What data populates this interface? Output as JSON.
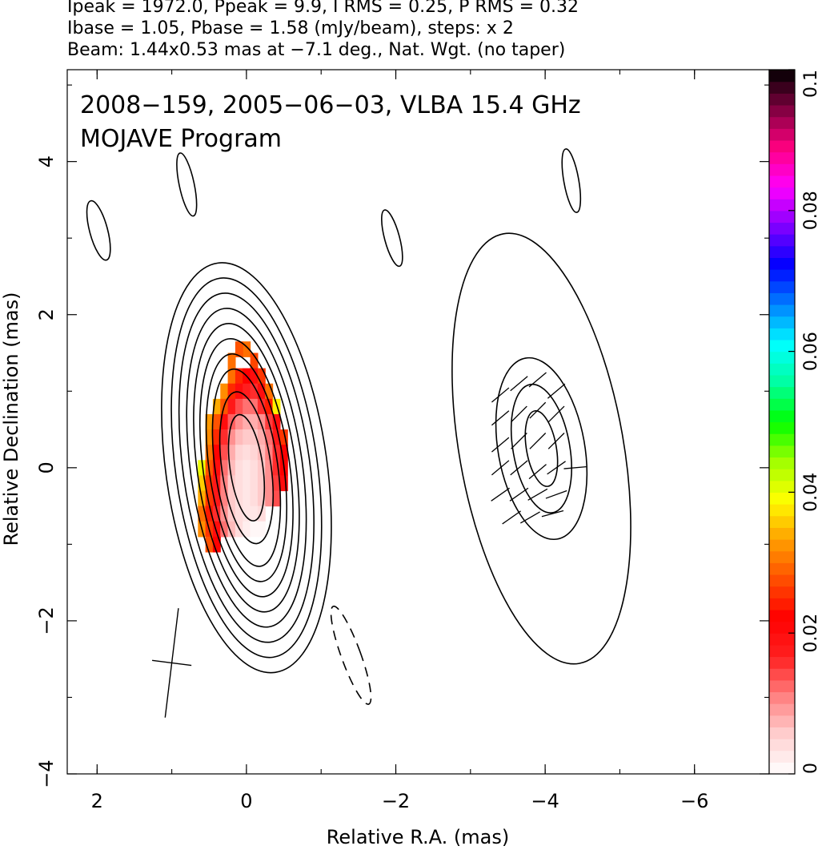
{
  "header": {
    "line1": "Ipeak = 1972.0, Ppeak = 9.9, I RMS = 0.25, P RMS = 0.32",
    "line2": "Ibase = 1.05, Pbase = 1.58 (mJy/beam), steps: x 2",
    "line3": "Beam: 1.44x0.53 mas at −7.1 deg., Nat. Wgt. (no taper)"
  },
  "annotation": {
    "line1": "2008−159, 2005−06−03, VLBA 15.4 GHz",
    "line2": "MOJAVE Program"
  },
  "chart_data": {
    "type": "heatmap",
    "xlabel": "Relative R.A. (mas)",
    "ylabel": "Relative Declination (mas)",
    "xlim": [
      2.4,
      -7.0
    ],
    "ylim": [
      -4.0,
      5.2
    ],
    "x_ticks": [
      2,
      0,
      -2,
      -4,
      -6
    ],
    "y_ticks": [
      -4,
      -2,
      0,
      2,
      4
    ],
    "x_tick_labels": [
      "2",
      "0",
      "−2",
      "−4",
      "−6"
    ],
    "y_tick_labels": [
      "−4",
      "−2",
      "0",
      "2",
      "4"
    ],
    "colorbar": {
      "range": [
        0,
        0.1
      ],
      "ticks": [
        0,
        0.02,
        0.04,
        0.06,
        0.08,
        0.1
      ],
      "tick_labels": [
        "0",
        "0.02",
        "0.04",
        "0.06",
        "0.08",
        "0.1"
      ],
      "colors": [
        "#ffffff",
        "#ffd0d0",
        "#ff8080",
        "#ff2020",
        "#ff0000",
        "#ff5000",
        "#ffa000",
        "#ffff00",
        "#a0ff00",
        "#00ff00",
        "#00ffa0",
        "#00ffff",
        "#0080ff",
        "#0000ff",
        "#8000ff",
        "#ff00ff",
        "#ff0080",
        "#800040",
        "#000000"
      ]
    },
    "core_contours": {
      "center": [
        0.0,
        0.0
      ],
      "angle_deg": -8,
      "levels": [
        {
          "ra": 1.08,
          "rdec": 2.7
        },
        {
          "ra": 0.95,
          "rdec": 2.5
        },
        {
          "ra": 0.85,
          "rdec": 2.3
        },
        {
          "ra": 0.75,
          "rdec": 2.1
        },
        {
          "ra": 0.66,
          "rdec": 1.9
        },
        {
          "ra": 0.58,
          "rdec": 1.7
        },
        {
          "ra": 0.5,
          "rdec": 1.5
        },
        {
          "ra": 0.42,
          "rdec": 1.3
        },
        {
          "ra": 0.33,
          "rdec": 1.0
        },
        {
          "ra": 0.22,
          "rdec": 0.7
        }
      ]
    },
    "jet_contours": {
      "center": [
        -3.95,
        0.25
      ],
      "angle_deg": -10,
      "levels": [
        {
          "ra": 1.1,
          "rdec": 2.85,
          "dashed": false
        },
        {
          "ra": 0.58,
          "rdec": 1.2,
          "dashed": false
        },
        {
          "ra": 0.38,
          "rdec": 0.85,
          "dashed": false
        },
        {
          "ra": 0.2,
          "rdec": 0.5,
          "dashed": false
        }
      ]
    },
    "isolated_contours": [
      {
        "x": 1.98,
        "y": 3.1,
        "ra": 0.12,
        "rdec": 0.4,
        "angle_deg": -15,
        "dashed": false
      },
      {
        "x": 0.8,
        "y": 3.7,
        "ra": 0.1,
        "rdec": 0.42,
        "angle_deg": -12,
        "dashed": false
      },
      {
        "x": -1.95,
        "y": 3.0,
        "ra": 0.1,
        "rdec": 0.38,
        "angle_deg": -15,
        "dashed": false
      },
      {
        "x": -4.35,
        "y": 3.75,
        "ra": 0.1,
        "rdec": 0.42,
        "angle_deg": -10,
        "dashed": false
      },
      {
        "x": -1.4,
        "y": -2.45,
        "ra": 0.13,
        "rdec": 0.68,
        "angle_deg": -20,
        "dashed": true
      }
    ],
    "polarization_pixels": [
      {
        "x": 0.0,
        "y": 1.55,
        "v": 0.03
      },
      {
        "x": 0.1,
        "y": 1.55,
        "v": 0.028
      },
      {
        "x": 0.2,
        "y": 1.4,
        "v": 0.03
      },
      {
        "x": -0.1,
        "y": 1.4,
        "v": 0.027
      },
      {
        "x": 0.2,
        "y": 1.2,
        "v": 0.03
      },
      {
        "x": 0.1,
        "y": 1.2,
        "v": 0.025
      },
      {
        "x": 0.0,
        "y": 1.2,
        "v": 0.022
      },
      {
        "x": -0.1,
        "y": 1.2,
        "v": 0.02
      },
      {
        "x": -0.2,
        "y": 1.2,
        "v": 0.026
      },
      {
        "x": 0.3,
        "y": 1.0,
        "v": 0.032
      },
      {
        "x": 0.2,
        "y": 1.0,
        "v": 0.025
      },
      {
        "x": 0.1,
        "y": 1.0,
        "v": 0.02
      },
      {
        "x": 0.0,
        "y": 1.0,
        "v": 0.017
      },
      {
        "x": -0.1,
        "y": 1.0,
        "v": 0.016
      },
      {
        "x": -0.2,
        "y": 1.0,
        "v": 0.02
      },
      {
        "x": -0.3,
        "y": 1.0,
        "v": 0.03
      },
      {
        "x": 0.4,
        "y": 0.8,
        "v": 0.034
      },
      {
        "x": 0.3,
        "y": 0.8,
        "v": 0.028
      },
      {
        "x": 0.2,
        "y": 0.8,
        "v": 0.018
      },
      {
        "x": 0.1,
        "y": 0.8,
        "v": 0.014
      },
      {
        "x": 0.0,
        "y": 0.8,
        "v": 0.012
      },
      {
        "x": -0.1,
        "y": 0.8,
        "v": 0.012
      },
      {
        "x": -0.2,
        "y": 0.8,
        "v": 0.016
      },
      {
        "x": -0.3,
        "y": 0.8,
        "v": 0.024
      },
      {
        "x": -0.4,
        "y": 0.8,
        "v": 0.038
      },
      {
        "x": 0.5,
        "y": 0.6,
        "v": 0.033
      },
      {
        "x": 0.4,
        "y": 0.6,
        "v": 0.028
      },
      {
        "x": 0.3,
        "y": 0.6,
        "v": 0.02
      },
      {
        "x": 0.2,
        "y": 0.6,
        "v": 0.013
      },
      {
        "x": 0.1,
        "y": 0.6,
        "v": 0.01
      },
      {
        "x": 0.0,
        "y": 0.6,
        "v": 0.008
      },
      {
        "x": -0.1,
        "y": 0.6,
        "v": 0.008
      },
      {
        "x": -0.2,
        "y": 0.6,
        "v": 0.01
      },
      {
        "x": -0.3,
        "y": 0.6,
        "v": 0.015
      },
      {
        "x": -0.4,
        "y": 0.6,
        "v": 0.02
      },
      {
        "x": 0.5,
        "y": 0.4,
        "v": 0.032
      },
      {
        "x": 0.4,
        "y": 0.4,
        "v": 0.025
      },
      {
        "x": 0.3,
        "y": 0.4,
        "v": 0.016
      },
      {
        "x": 0.2,
        "y": 0.4,
        "v": 0.01
      },
      {
        "x": 0.1,
        "y": 0.4,
        "v": 0.007
      },
      {
        "x": 0.0,
        "y": 0.4,
        "v": 0.006
      },
      {
        "x": -0.1,
        "y": 0.4,
        "v": 0.006
      },
      {
        "x": -0.2,
        "y": 0.4,
        "v": 0.008
      },
      {
        "x": -0.3,
        "y": 0.4,
        "v": 0.012
      },
      {
        "x": -0.4,
        "y": 0.4,
        "v": 0.018
      },
      {
        "x": -0.5,
        "y": 0.4,
        "v": 0.026
      },
      {
        "x": 0.5,
        "y": 0.2,
        "v": 0.03
      },
      {
        "x": 0.4,
        "y": 0.2,
        "v": 0.022
      },
      {
        "x": 0.3,
        "y": 0.2,
        "v": 0.014
      },
      {
        "x": 0.2,
        "y": 0.2,
        "v": 0.008
      },
      {
        "x": 0.1,
        "y": 0.2,
        "v": 0.005
      },
      {
        "x": 0.0,
        "y": 0.2,
        "v": 0.004
      },
      {
        "x": -0.1,
        "y": 0.2,
        "v": 0.005
      },
      {
        "x": -0.2,
        "y": 0.2,
        "v": 0.007
      },
      {
        "x": -0.3,
        "y": 0.2,
        "v": 0.011
      },
      {
        "x": -0.4,
        "y": 0.2,
        "v": 0.016
      },
      {
        "x": -0.5,
        "y": 0.2,
        "v": 0.022
      },
      {
        "x": 0.6,
        "y": 0.0,
        "v": 0.04
      },
      {
        "x": 0.5,
        "y": 0.0,
        "v": 0.028
      },
      {
        "x": 0.4,
        "y": 0.0,
        "v": 0.02
      },
      {
        "x": 0.3,
        "y": 0.0,
        "v": 0.012
      },
      {
        "x": 0.2,
        "y": 0.0,
        "v": 0.007
      },
      {
        "x": 0.1,
        "y": 0.0,
        "v": 0.004
      },
      {
        "x": 0.0,
        "y": 0.0,
        "v": 0.003
      },
      {
        "x": -0.1,
        "y": 0.0,
        "v": 0.004
      },
      {
        "x": -0.2,
        "y": 0.0,
        "v": 0.006
      },
      {
        "x": -0.3,
        "y": 0.0,
        "v": 0.01
      },
      {
        "x": -0.4,
        "y": 0.0,
        "v": 0.016
      },
      {
        "x": -0.5,
        "y": 0.0,
        "v": 0.022
      },
      {
        "x": 0.6,
        "y": -0.2,
        "v": 0.036
      },
      {
        "x": 0.5,
        "y": -0.2,
        "v": 0.026
      },
      {
        "x": 0.4,
        "y": -0.2,
        "v": 0.018
      },
      {
        "x": 0.3,
        "y": -0.2,
        "v": 0.011
      },
      {
        "x": 0.2,
        "y": -0.2,
        "v": 0.006
      },
      {
        "x": 0.1,
        "y": -0.2,
        "v": 0.004
      },
      {
        "x": 0.0,
        "y": -0.2,
        "v": 0.003
      },
      {
        "x": -0.1,
        "y": -0.2,
        "v": 0.004
      },
      {
        "x": -0.2,
        "y": -0.2,
        "v": 0.006
      },
      {
        "x": -0.3,
        "y": -0.2,
        "v": 0.01
      },
      {
        "x": -0.4,
        "y": -0.2,
        "v": 0.015
      },
      {
        "x": -0.5,
        "y": -0.2,
        "v": 0.02
      },
      {
        "x": 0.6,
        "y": -0.4,
        "v": 0.034
      },
      {
        "x": 0.5,
        "y": -0.4,
        "v": 0.026
      },
      {
        "x": 0.4,
        "y": -0.4,
        "v": 0.018
      },
      {
        "x": 0.3,
        "y": -0.4,
        "v": 0.011
      },
      {
        "x": 0.2,
        "y": -0.4,
        "v": 0.006
      },
      {
        "x": 0.1,
        "y": -0.4,
        "v": 0.004
      },
      {
        "x": 0.0,
        "y": -0.4,
        "v": 0.003
      },
      {
        "x": -0.1,
        "y": -0.4,
        "v": 0.004
      },
      {
        "x": -0.2,
        "y": -0.4,
        "v": 0.006
      },
      {
        "x": -0.3,
        "y": -0.4,
        "v": 0.01
      },
      {
        "x": -0.4,
        "y": -0.4,
        "v": 0.014
      },
      {
        "x": 0.6,
        "y": -0.6,
        "v": 0.03
      },
      {
        "x": 0.5,
        "y": -0.6,
        "v": 0.024
      },
      {
        "x": 0.4,
        "y": -0.6,
        "v": 0.016
      },
      {
        "x": 0.3,
        "y": -0.6,
        "v": 0.01
      },
      {
        "x": 0.2,
        "y": -0.6,
        "v": 0.006
      },
      {
        "x": 0.1,
        "y": -0.6,
        "v": 0.004
      },
      {
        "x": 0.0,
        "y": -0.6,
        "v": 0.003
      },
      {
        "x": -0.1,
        "y": -0.6,
        "v": 0.003
      },
      {
        "x": -0.2,
        "y": -0.6,
        "v": 0.004
      },
      {
        "x": 0.6,
        "y": -0.8,
        "v": 0.032
      },
      {
        "x": 0.5,
        "y": -0.8,
        "v": 0.026
      },
      {
        "x": 0.4,
        "y": -0.8,
        "v": 0.02
      },
      {
        "x": 0.3,
        "y": -0.8,
        "v": 0.012
      },
      {
        "x": 0.2,
        "y": -0.8,
        "v": 0.007
      },
      {
        "x": 0.1,
        "y": -0.8,
        "v": 0.004
      },
      {
        "x": 0.0,
        "y": -0.8,
        "v": 0.002
      },
      {
        "x": -0.1,
        "y": -0.8,
        "v": 0.001
      },
      {
        "x": -0.2,
        "y": -0.8,
        "v": 0.001
      },
      {
        "x": 0.5,
        "y": -1.0,
        "v": 0.028
      },
      {
        "x": 0.4,
        "y": -1.0,
        "v": 0.022
      }
    ],
    "evpa_vectors": [
      {
        "x": -3.4,
        "y": 0.95,
        "angle_deg": 40
      },
      {
        "x": -3.65,
        "y": 1.1,
        "angle_deg": 40
      },
      {
        "x": -3.9,
        "y": 1.15,
        "angle_deg": 40
      },
      {
        "x": -4.15,
        "y": 1.0,
        "angle_deg": 40
      },
      {
        "x": -3.4,
        "y": 0.65,
        "angle_deg": 40
      },
      {
        "x": -3.65,
        "y": 0.7,
        "angle_deg": 45
      },
      {
        "x": -3.9,
        "y": 0.75,
        "angle_deg": 45
      },
      {
        "x": -4.15,
        "y": 0.7,
        "angle_deg": 45
      },
      {
        "x": -3.4,
        "y": 0.3,
        "angle_deg": 40
      },
      {
        "x": -3.65,
        "y": 0.35,
        "angle_deg": 45
      },
      {
        "x": -3.9,
        "y": 0.35,
        "angle_deg": 45
      },
      {
        "x": -4.15,
        "y": 0.35,
        "angle_deg": 45
      },
      {
        "x": -3.4,
        "y": 0.0,
        "angle_deg": 40
      },
      {
        "x": -3.65,
        "y": 0.0,
        "angle_deg": 40
      },
      {
        "x": -3.9,
        "y": -0.05,
        "angle_deg": 40
      },
      {
        "x": -4.15,
        "y": 0.0,
        "angle_deg": 35
      },
      {
        "x": -4.4,
        "y": 0.0,
        "angle_deg": 5
      },
      {
        "x": -3.4,
        "y": -0.35,
        "angle_deg": 35
      },
      {
        "x": -3.65,
        "y": -0.35,
        "angle_deg": 35
      },
      {
        "x": -3.9,
        "y": -0.35,
        "angle_deg": 30
      },
      {
        "x": -4.15,
        "y": -0.35,
        "angle_deg": 20
      },
      {
        "x": -3.55,
        "y": -0.65,
        "angle_deg": 35
      },
      {
        "x": -3.8,
        "y": -0.65,
        "angle_deg": 30
      },
      {
        "x": -4.1,
        "y": -0.6,
        "angle_deg": 15
      }
    ],
    "beam_cross": {
      "x": 1.0,
      "y": -2.55,
      "major": 1.44,
      "minor": 0.53,
      "angle_deg": -7.1
    }
  }
}
